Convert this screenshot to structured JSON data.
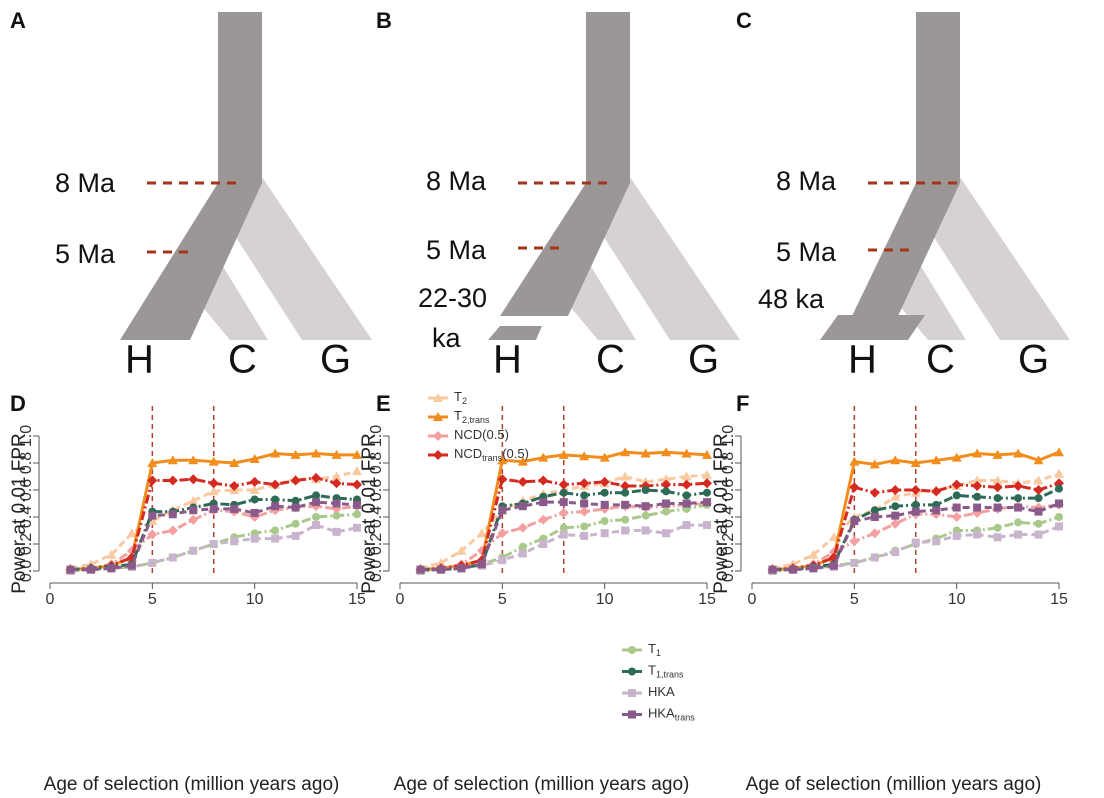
{
  "trees": [
    {
      "panel": "A",
      "labels": [
        "8 Ma",
        "5 Ma"
      ],
      "leaves": [
        "H",
        "C",
        "G"
      ]
    },
    {
      "panel": "B",
      "labels": [
        "8 Ma",
        "5 Ma",
        "22-30",
        "ka"
      ],
      "leaves": [
        "H",
        "C",
        "G"
      ]
    },
    {
      "panel": "C",
      "labels": [
        "8 Ma",
        "5 Ma",
        "48 ka"
      ],
      "leaves": [
        "H",
        "C",
        "G"
      ]
    }
  ],
  "chart_data": [
    {
      "type": "line",
      "panel": "D",
      "xlabel": "Age of selection (million years ago)",
      "ylabel": "Power at 0.01 FPR",
      "x": [
        1,
        2,
        3,
        4,
        5,
        6,
        7,
        8,
        9,
        10,
        11,
        12,
        13,
        14,
        15
      ],
      "xlim": [
        0,
        15
      ],
      "xticks": [
        0,
        5,
        10,
        15
      ],
      "ylim": [
        0,
        1
      ],
      "yticks": [
        {
          "value": 0,
          "label": "0.0"
        },
        {
          "value": 0.2,
          "label": "0.2"
        },
        {
          "value": 0.4,
          "label": "0.4"
        },
        {
          "value": 0.6,
          "label": "0.6"
        },
        {
          "value": 0.8,
          "label": "0.8"
        },
        {
          "value": 1,
          "label": "1.0"
        }
      ],
      "vlines": [
        5,
        8
      ],
      "series": [
        {
          "color": "#f9c9a0",
          "dash": "dashed",
          "marker": "triangle",
          "values": [
            0.02,
            0.05,
            0.12,
            0.28,
            0.37,
            0.45,
            0.52,
            0.59,
            0.6,
            0.6,
            0.64,
            0.68,
            0.68,
            0.7,
            0.74
          ]
        },
        {
          "color": "#f28c1c",
          "dash": "solid",
          "marker": "triangle",
          "values": [
            0.01,
            0.02,
            0.04,
            0.1,
            0.8,
            0.82,
            0.82,
            0.81,
            0.8,
            0.83,
            0.87,
            0.86,
            0.87,
            0.86,
            0.86
          ]
        },
        {
          "color": "#f4a0a0",
          "dash": "dashdot",
          "marker": "diamond",
          "values": [
            0.01,
            0.02,
            0.05,
            0.15,
            0.27,
            0.3,
            0.38,
            0.45,
            0.44,
            0.4,
            0.45,
            0.47,
            0.48,
            0.46,
            0.48
          ]
        },
        {
          "color": "#d42a22",
          "dash": "dashdot",
          "marker": "diamond",
          "values": [
            0.01,
            0.02,
            0.04,
            0.1,
            0.67,
            0.67,
            0.68,
            0.65,
            0.63,
            0.66,
            0.64,
            0.67,
            0.69,
            0.65,
            0.64
          ]
        },
        {
          "color": "#a8c98a",
          "dash": "dashdot",
          "marker": "circle",
          "values": [
            0.0,
            0.01,
            0.02,
            0.03,
            0.06,
            0.1,
            0.15,
            0.2,
            0.25,
            0.28,
            0.3,
            0.35,
            0.4,
            0.41,
            0.42
          ]
        },
        {
          "color": "#2d6b56",
          "dash": "dashdot",
          "marker": "circle",
          "values": [
            0.01,
            0.02,
            0.03,
            0.05,
            0.44,
            0.44,
            0.47,
            0.5,
            0.49,
            0.53,
            0.53,
            0.52,
            0.56,
            0.54,
            0.53
          ]
        },
        {
          "color": "#c8b4cc",
          "dash": "dashed",
          "marker": "square",
          "values": [
            0.0,
            0.01,
            0.02,
            0.03,
            0.06,
            0.1,
            0.15,
            0.2,
            0.22,
            0.24,
            0.24,
            0.26,
            0.34,
            0.29,
            0.32
          ]
        },
        {
          "color": "#8a5a8a",
          "dash": "dashed",
          "marker": "square",
          "values": [
            0.01,
            0.01,
            0.02,
            0.04,
            0.41,
            0.42,
            0.45,
            0.46,
            0.46,
            0.43,
            0.48,
            0.47,
            0.51,
            0.5,
            0.49
          ]
        }
      ]
    },
    {
      "type": "line",
      "panel": "E",
      "xlabel": "Age of selection (million years ago)",
      "ylabel": "Power at 0.01 FPR",
      "x": [
        1,
        2,
        3,
        4,
        5,
        6,
        7,
        8,
        9,
        10,
        11,
        12,
        13,
        14,
        15
      ],
      "xlim": [
        0,
        15
      ],
      "xticks": [
        0,
        5,
        10,
        15
      ],
      "ylim": [
        0,
        1
      ],
      "yticks": [
        {
          "value": 0,
          "label": "0.0"
        },
        {
          "value": 0.2,
          "label": "0.2"
        },
        {
          "value": 0.4,
          "label": "0.4"
        },
        {
          "value": 0.6,
          "label": "0.6"
        },
        {
          "value": 0.8,
          "label": "0.8"
        },
        {
          "value": 1,
          "label": "1.0"
        }
      ],
      "vlines": [
        5,
        8
      ],
      "series": [
        {
          "name": [
            "T",
            "2"
          ],
          "legend": "top-left",
          "color": "#f9c9a0",
          "dash": "dashed",
          "marker": "triangle",
          "values": [
            0.02,
            0.06,
            0.15,
            0.28,
            0.45,
            0.52,
            0.57,
            0.6,
            0.63,
            0.65,
            0.7,
            0.66,
            0.68,
            0.7,
            0.71
          ]
        },
        {
          "name": [
            "T",
            "2,trans"
          ],
          "legend": "top-left",
          "color": "#f28c1c",
          "dash": "solid",
          "marker": "triangle",
          "values": [
            0.01,
            0.02,
            0.04,
            0.08,
            0.82,
            0.81,
            0.84,
            0.86,
            0.85,
            0.84,
            0.88,
            0.87,
            0.88,
            0.87,
            0.86
          ]
        },
        {
          "name": [
            "NCD(0.5)"
          ],
          "legend": "top-left",
          "color": "#f4a0a0",
          "dash": "dashdot",
          "marker": "diamond",
          "values": [
            0.01,
            0.02,
            0.05,
            0.15,
            0.28,
            0.32,
            0.38,
            0.43,
            0.44,
            0.46,
            0.48,
            0.47,
            0.48,
            0.49,
            0.5
          ]
        },
        {
          "name": [
            "NCD",
            "trans",
            "(0.5)"
          ],
          "legend": "top-left",
          "color": "#d42a22",
          "dash": "dashdot",
          "marker": "diamond",
          "values": [
            0.01,
            0.02,
            0.04,
            0.08,
            0.68,
            0.66,
            0.67,
            0.64,
            0.65,
            0.66,
            0.63,
            0.63,
            0.64,
            0.64,
            0.65
          ]
        },
        {
          "name": [
            "T",
            "1"
          ],
          "legend": "bottom-right",
          "color": "#a8c98a",
          "dash": "dashdot",
          "marker": "circle",
          "values": [
            0.0,
            0.01,
            0.02,
            0.05,
            0.1,
            0.18,
            0.24,
            0.32,
            0.33,
            0.37,
            0.38,
            0.41,
            0.44,
            0.46,
            0.49
          ]
        },
        {
          "name": [
            "T",
            "1,trans"
          ],
          "legend": "bottom-right",
          "color": "#2d6b56",
          "dash": "dashdot",
          "marker": "circle",
          "values": [
            0.01,
            0.01,
            0.02,
            0.05,
            0.48,
            0.5,
            0.55,
            0.58,
            0.56,
            0.58,
            0.58,
            0.6,
            0.59,
            0.56,
            0.58
          ]
        },
        {
          "name": [
            "HKA"
          ],
          "legend": "bottom-right",
          "color": "#c8b4cc",
          "dash": "dashed",
          "marker": "square",
          "values": [
            0.0,
            0.01,
            0.02,
            0.04,
            0.08,
            0.13,
            0.2,
            0.27,
            0.26,
            0.28,
            0.3,
            0.3,
            0.28,
            0.34,
            0.34
          ]
        },
        {
          "name": [
            "HKA",
            "trans"
          ],
          "legend": "bottom-right",
          "color": "#8a5a8a",
          "dash": "dashed",
          "marker": "square",
          "values": [
            0.01,
            0.01,
            0.02,
            0.05,
            0.45,
            0.48,
            0.51,
            0.51,
            0.5,
            0.49,
            0.49,
            0.48,
            0.5,
            0.5,
            0.51
          ]
        }
      ]
    },
    {
      "type": "line",
      "panel": "F",
      "xlabel": "Age of selection (million years ago)",
      "ylabel": "Power at 0.01 FPR",
      "x": [
        1,
        2,
        3,
        4,
        5,
        6,
        7,
        8,
        9,
        10,
        11,
        12,
        13,
        14,
        15
      ],
      "xlim": [
        0,
        15
      ],
      "xticks": [
        0,
        5,
        10,
        15
      ],
      "ylim": [
        0,
        1
      ],
      "yticks": [
        {
          "value": 0,
          "label": "0.0"
        },
        {
          "value": 0.2,
          "label": "0.2"
        },
        {
          "value": 0.4,
          "label": "0.4"
        },
        {
          "value": 0.6,
          "label": "0.6"
        },
        {
          "value": 0.8,
          "label": "0.8"
        },
        {
          "value": 1,
          "label": "1.0"
        }
      ],
      "vlines": [
        5,
        8
      ],
      "series": [
        {
          "color": "#f9c9a0",
          "dash": "dashed",
          "marker": "triangle",
          "values": [
            0.02,
            0.05,
            0.12,
            0.25,
            0.4,
            0.45,
            0.55,
            0.58,
            0.6,
            0.63,
            0.67,
            0.67,
            0.65,
            0.67,
            0.72
          ]
        },
        {
          "color": "#f28c1c",
          "dash": "solid",
          "marker": "triangle",
          "values": [
            0.01,
            0.02,
            0.04,
            0.1,
            0.81,
            0.79,
            0.82,
            0.8,
            0.82,
            0.84,
            0.87,
            0.86,
            0.87,
            0.82,
            0.88
          ]
        },
        {
          "color": "#f4a0a0",
          "dash": "dashdot",
          "marker": "diamond",
          "values": [
            0.01,
            0.02,
            0.05,
            0.14,
            0.22,
            0.28,
            0.35,
            0.42,
            0.42,
            0.4,
            0.43,
            0.46,
            0.48,
            0.47,
            0.49
          ]
        },
        {
          "color": "#d42a22",
          "dash": "dashdot",
          "marker": "diamond",
          "values": [
            0.01,
            0.02,
            0.04,
            0.1,
            0.62,
            0.58,
            0.6,
            0.6,
            0.59,
            0.64,
            0.63,
            0.62,
            0.63,
            0.6,
            0.65
          ]
        },
        {
          "color": "#a8c98a",
          "dash": "dashdot",
          "marker": "circle",
          "values": [
            0.0,
            0.01,
            0.02,
            0.04,
            0.06,
            0.1,
            0.15,
            0.2,
            0.24,
            0.3,
            0.3,
            0.32,
            0.36,
            0.35,
            0.4
          ]
        },
        {
          "color": "#2d6b56",
          "dash": "dashdot",
          "marker": "circle",
          "values": [
            0.01,
            0.01,
            0.03,
            0.05,
            0.38,
            0.45,
            0.48,
            0.49,
            0.49,
            0.56,
            0.55,
            0.54,
            0.54,
            0.54,
            0.61
          ]
        },
        {
          "color": "#c8b4cc",
          "dash": "dashed",
          "marker": "square",
          "values": [
            0.0,
            0.01,
            0.02,
            0.03,
            0.06,
            0.1,
            0.14,
            0.21,
            0.22,
            0.26,
            0.27,
            0.25,
            0.27,
            0.27,
            0.33
          ]
        },
        {
          "color": "#8a5a8a",
          "dash": "dashed",
          "marker": "square",
          "values": [
            0.01,
            0.01,
            0.02,
            0.04,
            0.37,
            0.4,
            0.41,
            0.44,
            0.45,
            0.47,
            0.47,
            0.47,
            0.47,
            0.44,
            0.5
          ]
        }
      ]
    }
  ]
}
